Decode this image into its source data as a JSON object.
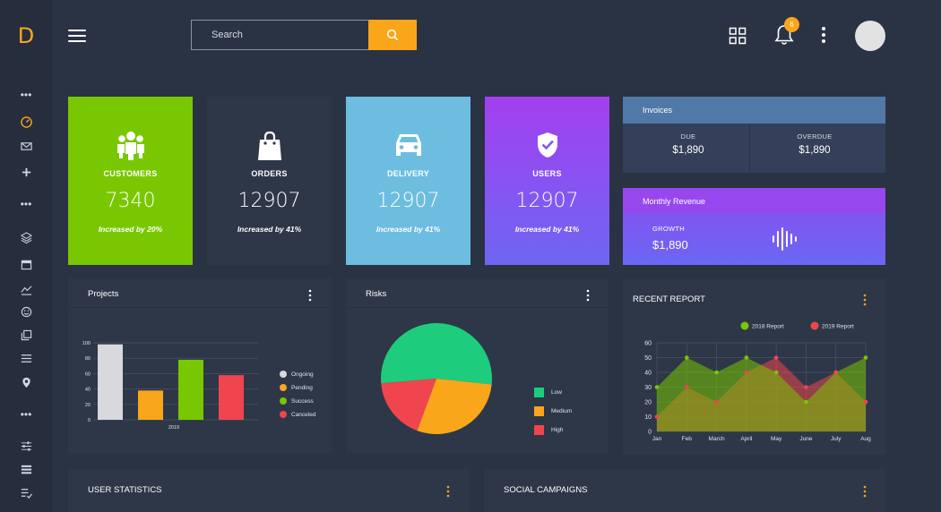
{
  "app": {
    "logo_letter": "D"
  },
  "search": {
    "placeholder": "Search"
  },
  "notifications": {
    "count": "6"
  },
  "stats": [
    {
      "label": "CUSTOMERS",
      "value": "7340",
      "note": "Increased by 20%",
      "color": "#79c700",
      "icon": "users-icon"
    },
    {
      "label": "ORDERS",
      "value": "12907",
      "note": "Increased by 41%",
      "color": "#2e3748",
      "icon": "shopping-bag-icon"
    },
    {
      "label": "DELIVERY",
      "value": "12907",
      "note": "Increased by 41%",
      "color": "#6cbde0",
      "icon": "car-icon"
    },
    {
      "label": "USERS",
      "value": "12907",
      "note": "Increased by 41%",
      "color": "#9b44f0",
      "icon": "shield-check-icon"
    }
  ],
  "invoices": {
    "title": "Invoices",
    "due_label": "DUE",
    "due_value": "$1,890",
    "overdue_label": "OVERDUE",
    "overdue_value": "$1,890"
  },
  "revenue": {
    "title": "Monthly Revenue",
    "growth_label": "GROWTH",
    "growth_value": "$1,890"
  },
  "projects": {
    "title": "Projects"
  },
  "risks": {
    "title": "Risks"
  },
  "recent_report": {
    "title": "RECENT REPORT"
  },
  "user_statistics": {
    "title": "USER STATISTICS"
  },
  "social_campaigns": {
    "title": "SOCIAL CAMPAIGNS"
  },
  "chart_data": [
    {
      "type": "bar",
      "categories": [
        "Ongoing",
        "Pending",
        "Success",
        "Canceled"
      ],
      "values": [
        98,
        38,
        78,
        58
      ],
      "colors": [
        "#d7d9dc",
        "#f9a61a",
        "#79c700",
        "#f0454f"
      ],
      "xlabel": "2019",
      "yticks": [
        0,
        20,
        40,
        60,
        80,
        100
      ],
      "ylim": [
        0,
        100
      ],
      "legend": [
        "Ongoing",
        "Pending",
        "Success",
        "Canceled"
      ],
      "legend_placement": "right"
    },
    {
      "type": "pie",
      "labels": [
        "Low",
        "Medium",
        "High"
      ],
      "values": [
        53,
        29,
        18
      ],
      "colors": [
        "#1dcc7d",
        "#f9a61a",
        "#f0454f"
      ],
      "legend_placement": "right"
    },
    {
      "type": "area",
      "categories": [
        "Jan",
        "Feb",
        "March",
        "April",
        "May",
        "June",
        "July",
        "Aug"
      ],
      "series": [
        {
          "name": "2018 Report",
          "values": [
            30,
            50,
            40,
            50,
            40,
            20,
            40,
            50
          ],
          "color": "#79c700"
        },
        {
          "name": "2019 Report",
          "values": [
            10,
            30,
            20,
            40,
            50,
            30,
            40,
            20
          ],
          "color": "#f0454f"
        }
      ],
      "yticks": [
        0,
        10,
        20,
        30,
        40,
        50,
        60
      ],
      "ylim": [
        0,
        60
      ],
      "grid": true,
      "legend_placement": "top-right"
    }
  ]
}
